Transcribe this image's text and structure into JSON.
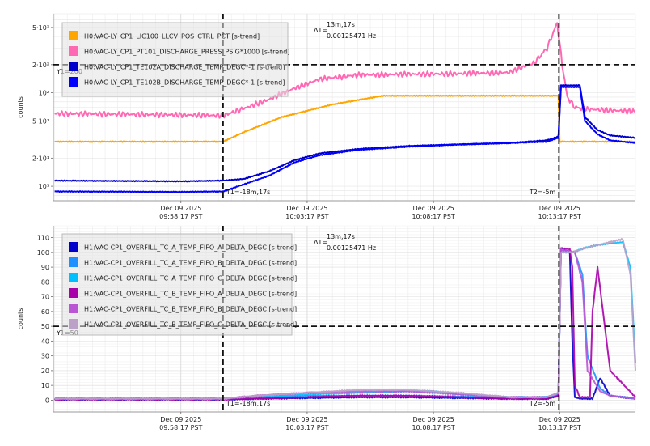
{
  "chart_data": [
    {
      "type": "line",
      "ylabel": "counts",
      "y_scale": "log",
      "ylim": [
        7,
        700
      ],
      "y_ticks": [
        10,
        20,
        50,
        100,
        200,
        500
      ],
      "y_tick_labels": [
        "10¹",
        "2·10¹",
        "5·10¹",
        "10²",
        "2·10²",
        "5·10²"
      ],
      "x_ticks": [
        {
          "date": "Dec 09 2025",
          "time": "09:58:17 PST",
          "min": 0
        },
        {
          "date": "Dec 09 2025",
          "time": "10:03:17 PST",
          "min": 5
        },
        {
          "date": "Dec 09 2025",
          "time": "10:08:17 PST",
          "min": 10
        },
        {
          "date": "Dec 09 2025",
          "time": "10:13:17 PST",
          "min": 15
        }
      ],
      "grid": true,
      "legend_position": "top-left",
      "cursor_y_label": "Y1=200",
      "cursor_y": 200,
      "t1_label": "T1=-18m,17s",
      "t2_label": "T2=-5m",
      "t1_min": 1.67,
      "t2_min": 14.97,
      "delta_label": "ΔT=",
      "delta_line1": "13m,17s",
      "delta_line2": "0.00125471 Hz",
      "series": [
        {
          "name": "H0:VAC-LY_CP1_LIC100_LLCV_POS_CTRL_PCT [s-trend]",
          "color": "#ffa500",
          "x": [
            -5,
            1.67,
            2.5,
            4,
            6,
            8,
            10,
            12,
            14.95,
            15.0,
            17,
            18
          ],
          "values": [
            30,
            30,
            38,
            55,
            75,
            93,
            93,
            93,
            93,
            30,
            30,
            30
          ]
        },
        {
          "name": "H0:VAC-LY_CP1_PT101_DISCHARGE_PRESS_PSIG*1000 [s-trend]",
          "color": "#ff69b4",
          "x": [
            -5,
            0,
            1.67,
            2.5,
            3.5,
            4.5,
            5.5,
            7,
            9,
            11,
            13,
            14,
            14.5,
            14.9,
            15.1,
            15.3,
            15.6,
            16,
            17,
            18
          ],
          "values": [
            60,
            58,
            57,
            68,
            85,
            112,
            140,
            155,
            158,
            160,
            165,
            210,
            300,
            560,
            200,
            90,
            70,
            67,
            65,
            63
          ]
        },
        {
          "name": "H0:VAC-LY_CP1_TE102A_DISCHARGE_TEMP_DEGC*-1 [s-trend]",
          "color": "#0000cd",
          "x": [
            -5,
            0,
            1.67,
            2.5,
            3.5,
            4.5,
            5.5,
            7,
            9,
            11,
            13,
            14.5,
            14.95,
            15.05,
            15.8,
            16,
            16.5,
            17,
            18
          ],
          "values": [
            11.5,
            11.3,
            11.5,
            12,
            14.5,
            19,
            22.5,
            25,
            27,
            28,
            29,
            31,
            34,
            120,
            120,
            55,
            40,
            35,
            33
          ]
        },
        {
          "name": "H0:VAC-LY_CP1_TE102B_DISCHARGE_TEMP_DEGC*-1 [s-trend]",
          "color": "#0000ff",
          "x": [
            -5,
            0,
            1.67,
            2.5,
            3.5,
            4.5,
            5.5,
            7,
            9,
            11,
            13,
            14.5,
            14.95,
            15.05,
            15.8,
            16,
            16.5,
            17,
            18
          ],
          "values": [
            8.8,
            8.7,
            8.8,
            10.5,
            13,
            18,
            21.5,
            24.5,
            26.5,
            28,
            29,
            30,
            33,
            115,
            115,
            50,
            36,
            31,
            29
          ]
        }
      ]
    },
    {
      "type": "line",
      "ylabel": "counts",
      "ylim": [
        -8,
        118
      ],
      "y_ticks": [
        0,
        10,
        20,
        30,
        40,
        50,
        60,
        70,
        80,
        90,
        100,
        110
      ],
      "y_tick_labels": [
        "0",
        "10",
        "20",
        "30",
        "40",
        "50",
        "60",
        "70",
        "80",
        "90",
        "100",
        "110"
      ],
      "x_ticks": [
        {
          "date": "Dec 09 2025",
          "time": "09:58:17 PST",
          "min": 0
        },
        {
          "date": "Dec 09 2025",
          "time": "10:03:17 PST",
          "min": 5
        },
        {
          "date": "Dec 09 2025",
          "time": "10:08:17 PST",
          "min": 10
        },
        {
          "date": "Dec 09 2025",
          "time": "10:13:17 PST",
          "min": 15
        }
      ],
      "grid": true,
      "legend_position": "top-left",
      "cursor_y_label": "Y1=50",
      "cursor_y": 50,
      "t1_label": "T1=-18m,17s",
      "t2_label": "T2=-5m",
      "t1_min": 1.67,
      "t2_min": 14.97,
      "delta_label": "ΔT=",
      "delta_line1": "13m,17s",
      "delta_line2": "0.00125471 Hz",
      "series": [
        {
          "name": "H1:VAC-CP1_OVERFILL_TC_A_TEMP_FIFO_A_DELTA_DEGC [s-trend]",
          "color": "#0000cd",
          "x": [
            -5,
            1.67,
            3,
            5,
            7,
            9,
            11,
            13,
            14.5,
            14.95,
            15.05,
            15.4,
            15.5,
            15.6,
            15.8,
            16.3,
            16.6,
            17,
            18
          ],
          "values": [
            0.5,
            0.5,
            1,
            1.5,
            2,
            2,
            1.5,
            1,
            1,
            3,
            103,
            100,
            40,
            2,
            1,
            1,
            15,
            3,
            1
          ]
        },
        {
          "name": "H1:VAC-CP1_OVERFILL_TC_A_TEMP_FIFO_B_DELTA_DEGC [s-trend]",
          "color": "#1e90ff",
          "x": [
            -5,
            1.67,
            3,
            5,
            7,
            9,
            11,
            13,
            14.5,
            14.95,
            15.05,
            15.6,
            15.9,
            16.1,
            16.6,
            17,
            17.6,
            17.8,
            18
          ],
          "values": [
            1,
            1,
            2,
            3,
            3,
            3,
            2.5,
            2,
            2,
            4,
            101,
            100,
            85,
            30,
            8,
            3,
            2,
            1.5,
            1
          ]
        },
        {
          "name": "H1:VAC-CP1_OVERFILL_TC_A_TEMP_FIFO_C_DELTA_DEGC [s-trend]",
          "color": "#00bfff",
          "x": [
            -5,
            1.67,
            3,
            5,
            7,
            9,
            10,
            11,
            13,
            14.5,
            14.95,
            15.05,
            15.5,
            16,
            16.5,
            17,
            17.5,
            17.8,
            18
          ],
          "values": [
            1,
            1,
            2,
            4,
            5,
            6,
            6,
            4,
            2,
            2,
            5,
            100,
            100,
            103,
            105,
            106,
            107,
            90,
            25
          ]
        },
        {
          "name": "H1:VAC-CP1_OVERFILL_TC_B_TEMP_FIFO_A_DELTA_DEGC [s-trend]",
          "color": "#aa00aa",
          "x": [
            -5,
            1.67,
            3,
            5,
            7,
            9,
            11,
            13,
            14.5,
            14.95,
            15.05,
            15.4,
            15.5,
            15.6,
            15.8,
            16.2,
            16.3,
            16.5,
            17,
            18
          ],
          "values": [
            0.5,
            0.5,
            1,
            2,
            3,
            3,
            2,
            1,
            1,
            3,
            103,
            102,
            90,
            10,
            2,
            2,
            60,
            90,
            20,
            2
          ]
        },
        {
          "name": "H1:VAC-CP1_OVERFILL_TC_B_TEMP_FIFO_B_DELTA_DEGC [s-trend]",
          "color": "#ba55d3",
          "x": [
            -5,
            1.67,
            3,
            5,
            7,
            9,
            11,
            13,
            14.5,
            14.95,
            15.05,
            15.6,
            15.9,
            16.1,
            16.6,
            17,
            17.5,
            17.8,
            18
          ],
          "values": [
            1,
            1,
            3,
            5,
            6,
            6,
            4,
            2,
            2,
            5,
            102,
            100,
            80,
            20,
            6,
            3,
            2,
            1.5,
            1
          ]
        },
        {
          "name": "H1:VAC-CP1_OVERFILL_TC_B_TEMP_FIFO_C_DELTA_DEGC [s-trend]",
          "color": "#bba0c8",
          "x": [
            -5,
            1.67,
            3,
            5,
            7,
            9,
            11,
            13,
            14.5,
            14.95,
            15.05,
            15.5,
            16,
            16.5,
            17,
            17.5,
            17.8,
            18
          ],
          "values": [
            1,
            1,
            3,
            5,
            7,
            7,
            5,
            2,
            2,
            5,
            100,
            100,
            103,
            105,
            107,
            109,
            85,
            20
          ]
        }
      ]
    }
  ]
}
